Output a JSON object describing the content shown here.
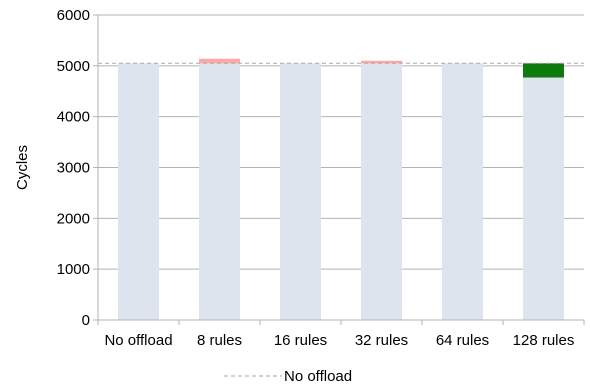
{
  "chart_data": {
    "type": "bar",
    "categories": [
      "No offload",
      "8 rules",
      "16 rules",
      "32 rules",
      "64 rules",
      "128 rules"
    ],
    "baseline": {
      "name": "No offload",
      "value": 5050,
      "style": "dashed"
    },
    "values": [
      5050,
      5140,
      5050,
      5100,
      5050,
      4770
    ],
    "ylabel": "Cycles",
    "xlabel": "",
    "ylim": [
      0,
      6000
    ],
    "yticks": [
      0,
      1000,
      2000,
      3000,
      4000,
      5000,
      6000
    ],
    "grid": true,
    "legend": "bottom-center",
    "colors": {
      "bar": "#dde4ee",
      "increase": "#ffa6a6",
      "decrease": "#0e7a0e",
      "baseline": "#aaaaaa",
      "grid": "#b3b3b3",
      "axis": "#b3b3b3"
    }
  }
}
